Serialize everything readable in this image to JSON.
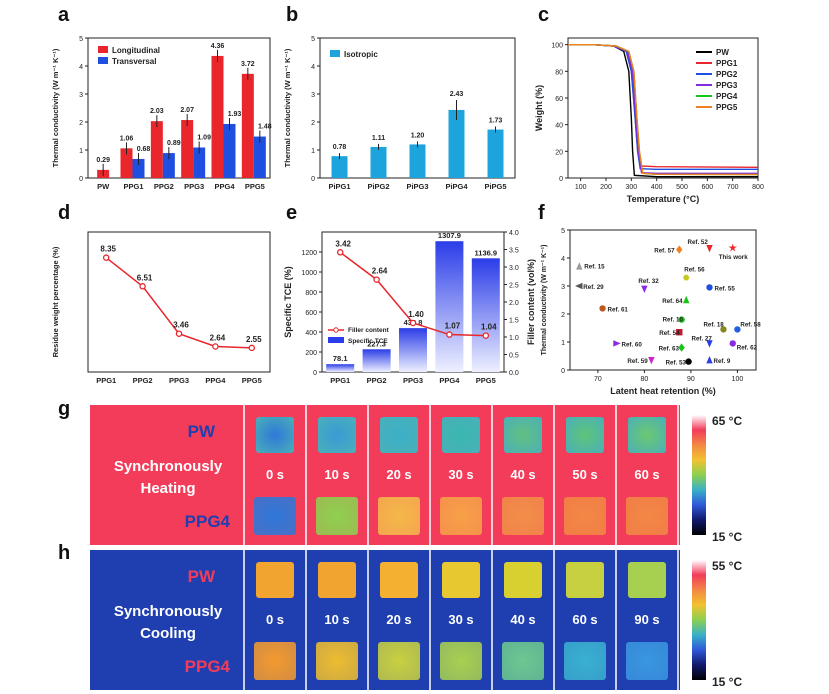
{
  "panel_letters": {
    "a": "a",
    "b": "b",
    "c": "c",
    "d": "d",
    "e": "e",
    "f": "f",
    "g": "g",
    "h": "h"
  },
  "chart_data": [
    {
      "id": "a",
      "type": "bar",
      "ylabel": "Thermal conductivity (W m⁻¹ K⁻¹)",
      "categories": [
        "PW",
        "PPG1",
        "PPG2",
        "PPG3",
        "PPG4",
        "PPG5"
      ],
      "series": [
        {
          "name": "Longitudinal",
          "values": [
            0.29,
            1.06,
            2.03,
            2.07,
            4.36,
            3.72
          ],
          "labels": [
            "0.29",
            "1.06",
            "2.03",
            "2.07",
            "4.36",
            "3.72"
          ],
          "color": "#e8262b"
        },
        {
          "name": "Transversal",
          "values": [
            null,
            0.68,
            0.89,
            1.09,
            1.93,
            1.48
          ],
          "labels": [
            "",
            "0.68",
            "0.89",
            "1.09",
            "1.93",
            "1.48"
          ],
          "color": "#1f4fe0"
        }
      ],
      "ylim": [
        0,
        5
      ]
    },
    {
      "id": "b",
      "type": "bar",
      "ylabel": "Thermal conductivity (W m⁻¹ K⁻¹)",
      "categories": [
        "PiPG1",
        "PiPG2",
        "PiPG3",
        "PiPG4",
        "PiPG5"
      ],
      "series": [
        {
          "name": "Isotropic",
          "values": [
            0.78,
            1.11,
            1.2,
            2.43,
            1.73
          ],
          "labels": [
            "0.78",
            "1.11",
            "1.20",
            "2.43",
            "1.73"
          ],
          "color": "#1ea4dc"
        }
      ],
      "ylim": [
        0,
        5
      ]
    },
    {
      "id": "c",
      "type": "line",
      "xlabel": "Temperature (°C)",
      "ylabel": "Weight (%)",
      "xlim": [
        50,
        800
      ],
      "ylim": [
        0,
        105
      ],
      "xticks": [
        100,
        200,
        300,
        400,
        500,
        600,
        700,
        800
      ],
      "yticks": [
        0,
        20,
        40,
        60,
        80,
        100
      ],
      "series": [
        {
          "name": "PW",
          "color": "#000000",
          "x": [
            50,
            150,
            230,
            270,
            290,
            300,
            305,
            312,
            400,
            800
          ],
          "y": [
            100,
            100,
            99,
            95,
            80,
            45,
            20,
            2,
            1,
            1
          ]
        },
        {
          "name": "PPG1",
          "color": "#e8262b",
          "x": [
            50,
            150,
            230,
            280,
            300,
            315,
            325,
            335,
            400,
            800
          ],
          "y": [
            100,
            100,
            99,
            95,
            80,
            45,
            20,
            9,
            8.5,
            8
          ]
        },
        {
          "name": "PPG2",
          "color": "#1f4fe0",
          "x": [
            50,
            150,
            230,
            280,
            300,
            315,
            325,
            335,
            400,
            800
          ],
          "y": [
            100,
            100,
            99,
            95,
            80,
            45,
            20,
            7,
            6.5,
            6.5
          ]
        },
        {
          "name": "PPG3",
          "color": "#8a2be2",
          "x": [
            50,
            150,
            235,
            285,
            305,
            318,
            328,
            340,
            400,
            800
          ],
          "y": [
            100,
            100,
            99,
            95,
            80,
            45,
            20,
            4,
            3.5,
            3.5
          ]
        },
        {
          "name": "PPG4",
          "color": "#18c418",
          "x": [
            50,
            150,
            240,
            290,
            310,
            322,
            332,
            345,
            400,
            800
          ],
          "y": [
            100,
            100,
            99,
            95,
            80,
            45,
            20,
            3.5,
            2.8,
            2.6
          ]
        },
        {
          "name": "PPG5",
          "color": "#f08020",
          "x": [
            50,
            150,
            240,
            290,
            310,
            322,
            332,
            345,
            400,
            800
          ],
          "y": [
            100,
            100,
            99,
            95,
            80,
            45,
            20,
            3.5,
            2.8,
            2.6
          ]
        }
      ]
    },
    {
      "id": "d",
      "type": "line",
      "ylabel": "Residue weight percentage (%)",
      "categories": [
        "PPG1",
        "PPG2",
        "PPG3",
        "PPG4",
        "PPG5"
      ],
      "values": [
        8.35,
        6.51,
        3.46,
        2.64,
        2.55
      ],
      "labels": [
        "8.35",
        "6.51",
        "3.46",
        "2.64",
        "2.55"
      ],
      "ylim": [
        1,
        10
      ],
      "color": "#e8262b"
    },
    {
      "id": "e",
      "type": "bar",
      "ylabel": "Specific TCE (%)",
      "y2label": "Filler content (vol%)",
      "categories": [
        "PPG1",
        "PPG2",
        "PPG3",
        "PPG4",
        "PPG5"
      ],
      "yticks": [
        0,
        200,
        400,
        600,
        800,
        1000,
        1200
      ],
      "y2ticks": [
        "0.0",
        "0.5",
        "1.0",
        "1.5",
        "2.0",
        "2.5",
        "3.0",
        "3.5",
        "4.0"
      ],
      "ylim": [
        0,
        1400
      ],
      "y2lim": [
        0,
        4
      ],
      "series": [
        {
          "name": "Specific TCE",
          "type": "bar",
          "values": [
            78.1,
            227.3,
            438.8,
            1307.9,
            1136.9
          ],
          "labels": [
            "78.1",
            "227.3",
            "438.8",
            "1307.9",
            "1136.9"
          ],
          "color": "#2b3de8"
        },
        {
          "name": "Filler content",
          "type": "line",
          "values": [
            3.42,
            2.64,
            1.4,
            1.07,
            1.04
          ],
          "labels": [
            "3.42",
            "2.64",
            "1.40",
            "1.07",
            "1.04"
          ],
          "color": "#e8262b"
        }
      ]
    },
    {
      "id": "f",
      "type": "scatter",
      "xlabel": "Latent heat retention (%)",
      "ylabel": "Thermal conductivity (W m⁻¹ K⁻¹)",
      "xlim": [
        64,
        104
      ],
      "ylim": [
        0,
        5
      ],
      "xticks": [
        70,
        80,
        90,
        100
      ],
      "yticks": [
        0,
        1,
        2,
        3,
        4,
        5
      ],
      "points": [
        {
          "label": "Ref. 57",
          "x": 87.5,
          "y": 4.3,
          "color": "#f08020",
          "marker": "diamond"
        },
        {
          "label": "Ref. 52",
          "x": 94,
          "y": 4.35,
          "color": "#e8262b",
          "marker": "tri-down"
        },
        {
          "label": "This work",
          "x": 99,
          "y": 4.36,
          "color": "#e8262b",
          "marker": "star"
        },
        {
          "label": "Ref. 15",
          "x": 66,
          "y": 3.7,
          "color": "#9a9a9a",
          "marker": "triangle"
        },
        {
          "label": "Ref. 56",
          "x": 89,
          "y": 3.3,
          "color": "#c8c820",
          "marker": "hexagon"
        },
        {
          "label": "Ref. 29",
          "x": 66,
          "y": 3.0,
          "color": "#555555",
          "marker": "tri-left"
        },
        {
          "label": "Ref. 32",
          "x": 80,
          "y": 2.9,
          "color": "#8a2be2",
          "marker": "tri-down"
        },
        {
          "label": "Ref. 55",
          "x": 94,
          "y": 2.95,
          "color": "#1f4fe0",
          "marker": "circle"
        },
        {
          "label": "Ref. 64",
          "x": 89,
          "y": 2.5,
          "color": "#18c418",
          "marker": "triangle"
        },
        {
          "label": "Ref. 61",
          "x": 71,
          "y": 2.2,
          "color": "#b85a20",
          "marker": "circle"
        },
        {
          "label": "Ref. 10",
          "x": 88,
          "y": 1.8,
          "color": "#18c418",
          "marker": "circle"
        },
        {
          "label": "Ref. 18",
          "x": 97,
          "y": 1.45,
          "color": "#888820",
          "marker": "circle"
        },
        {
          "label": "Ref. 58",
          "x": 100,
          "y": 1.45,
          "color": "#2060e0",
          "marker": "circle"
        },
        {
          "label": "Ref. 54",
          "x": 87.5,
          "y": 1.35,
          "color": "#c0192b",
          "marker": "square"
        },
        {
          "label": "Ref. 60",
          "x": 74,
          "y": 0.95,
          "color": "#8a2be2",
          "marker": "tri-right"
        },
        {
          "label": "Ref. 27",
          "x": 94,
          "y": 0.95,
          "color": "#2b3de8",
          "marker": "tri-down"
        },
        {
          "label": "Ref. 62",
          "x": 99,
          "y": 0.95,
          "color": "#8a2be2",
          "marker": "circle"
        },
        {
          "label": "Ref. 63",
          "x": 88,
          "y": 0.8,
          "color": "#18c418",
          "marker": "diamond"
        },
        {
          "label": "Ref. 59",
          "x": 81.5,
          "y": 0.35,
          "color": "#d020d0",
          "marker": "tri-down"
        },
        {
          "label": "Ref. 53",
          "x": 89.5,
          "y": 0.3,
          "color": "#000000",
          "marker": "circle"
        },
        {
          "label": "Ref. 9",
          "x": 94,
          "y": 0.35,
          "color": "#2b3de8",
          "marker": "triangle"
        }
      ]
    }
  ],
  "thermal_g": {
    "top_label": "PW",
    "bottom_label": "PPG4",
    "caption": [
      "Synchronously",
      "Heating"
    ],
    "times": [
      "0 s",
      "10 s",
      "20 s",
      "30 s",
      "40 s",
      "50 s",
      "60 s"
    ],
    "scale_max": "65 °C",
    "scale_min": "15 °C",
    "top_colors": [
      "#2e78d8",
      "#3a9ad6",
      "#3bb0c8",
      "#3ab7b0",
      "#62c080",
      "#5ec47a",
      "#6cc870"
    ],
    "bottom_colors": [
      "#2e78d8",
      "#8ed050",
      "#f4b84a",
      "#f7a048",
      "#f28e48",
      "#f28844",
      "#f28844"
    ]
  },
  "thermal_h": {
    "top_label": "PW",
    "bottom_label": "PPG4",
    "caption": [
      "Synchronously",
      "Cooling"
    ],
    "times": [
      "0 s",
      "10 s",
      "20 s",
      "30 s",
      "40 s",
      "60 s",
      "90 s"
    ],
    "scale_max": "55 °C",
    "scale_min": "15 °C",
    "top_colors": [
      "#f2a430",
      "#f2a430",
      "#f4b030",
      "#e8c830",
      "#d8d030",
      "#c6d040",
      "#a8d050"
    ],
    "bottom_colors": [
      "#f29a30",
      "#ecbc30",
      "#c8d040",
      "#a8d050",
      "#6cc890",
      "#3ab0d0",
      "#3a96e0"
    ]
  }
}
